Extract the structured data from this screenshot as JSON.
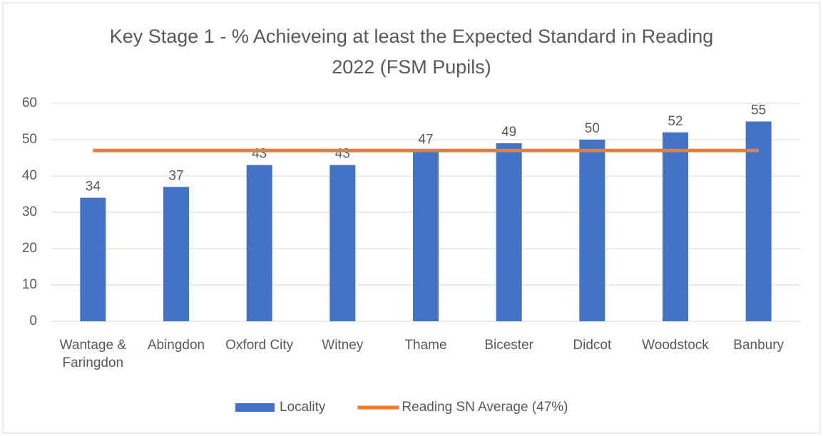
{
  "chart_data": {
    "type": "bar",
    "title": "Key Stage 1 - % Achieveing at least the Expected Standard in Reading 2022 (FSM Pupils)",
    "categories": [
      "Wantage & Faringdon",
      "Abingdon",
      "Oxford City",
      "Witney",
      "Thame",
      "Bicester",
      "Didcot",
      "Woodstock",
      "Banbury"
    ],
    "series": [
      {
        "name": "Locality",
        "type": "bar",
        "color": "#4472c4",
        "values": [
          34,
          37,
          43,
          43,
          47,
          49,
          50,
          52,
          55
        ]
      },
      {
        "name": "Reading SN Average (47%)",
        "type": "line",
        "color": "#ed7d31",
        "values": [
          47,
          47,
          47,
          47,
          47,
          47,
          47,
          47,
          47
        ]
      }
    ],
    "ylim": [
      0,
      60
    ],
    "yticks": [
      0,
      10,
      20,
      30,
      40,
      50,
      60
    ],
    "grid": true,
    "legend": "bottom"
  }
}
